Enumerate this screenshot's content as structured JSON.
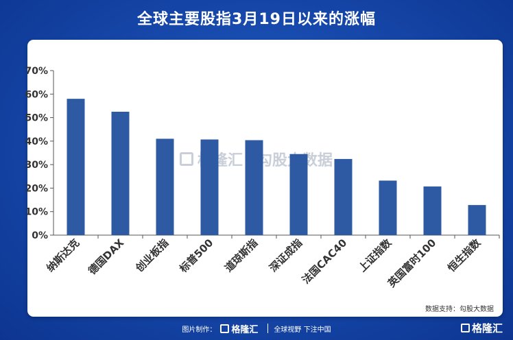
{
  "title": "全球主要股指3月19日以来的涨幅",
  "source_note": "数据支持：勾股大数据",
  "watermark": {
    "brand": "格隆汇",
    "text": "勾股大数据"
  },
  "footer": {
    "made_by": "图片制作：",
    "brand": "格隆汇",
    "slogan": "全球视野 下注中国"
  },
  "corner_logo": "格隆汇",
  "colors": {
    "bar": "#2e5aa3",
    "background": "#1546a8",
    "panel": "#ffffff"
  },
  "chart_data": {
    "type": "bar",
    "title": "全球主要股指3月19日以来的涨幅",
    "xlabel": "",
    "ylabel": "",
    "categories": [
      "纳斯达克",
      "德国DAX",
      "创业板指",
      "标普500",
      "道琼斯指",
      "深证成指",
      "法国CAC40",
      "上证指数",
      "英国富时100",
      "恒生指数"
    ],
    "values": [
      58,
      52.5,
      41,
      40.7,
      40.4,
      34.5,
      32.4,
      23.2,
      20.7,
      12.8
    ],
    "ylim": [
      0,
      70
    ],
    "yticks": [
      "0%",
      "10%",
      "20%",
      "30%",
      "40%",
      "50%",
      "60%",
      "70%"
    ],
    "grid": false,
    "legend": "none"
  }
}
